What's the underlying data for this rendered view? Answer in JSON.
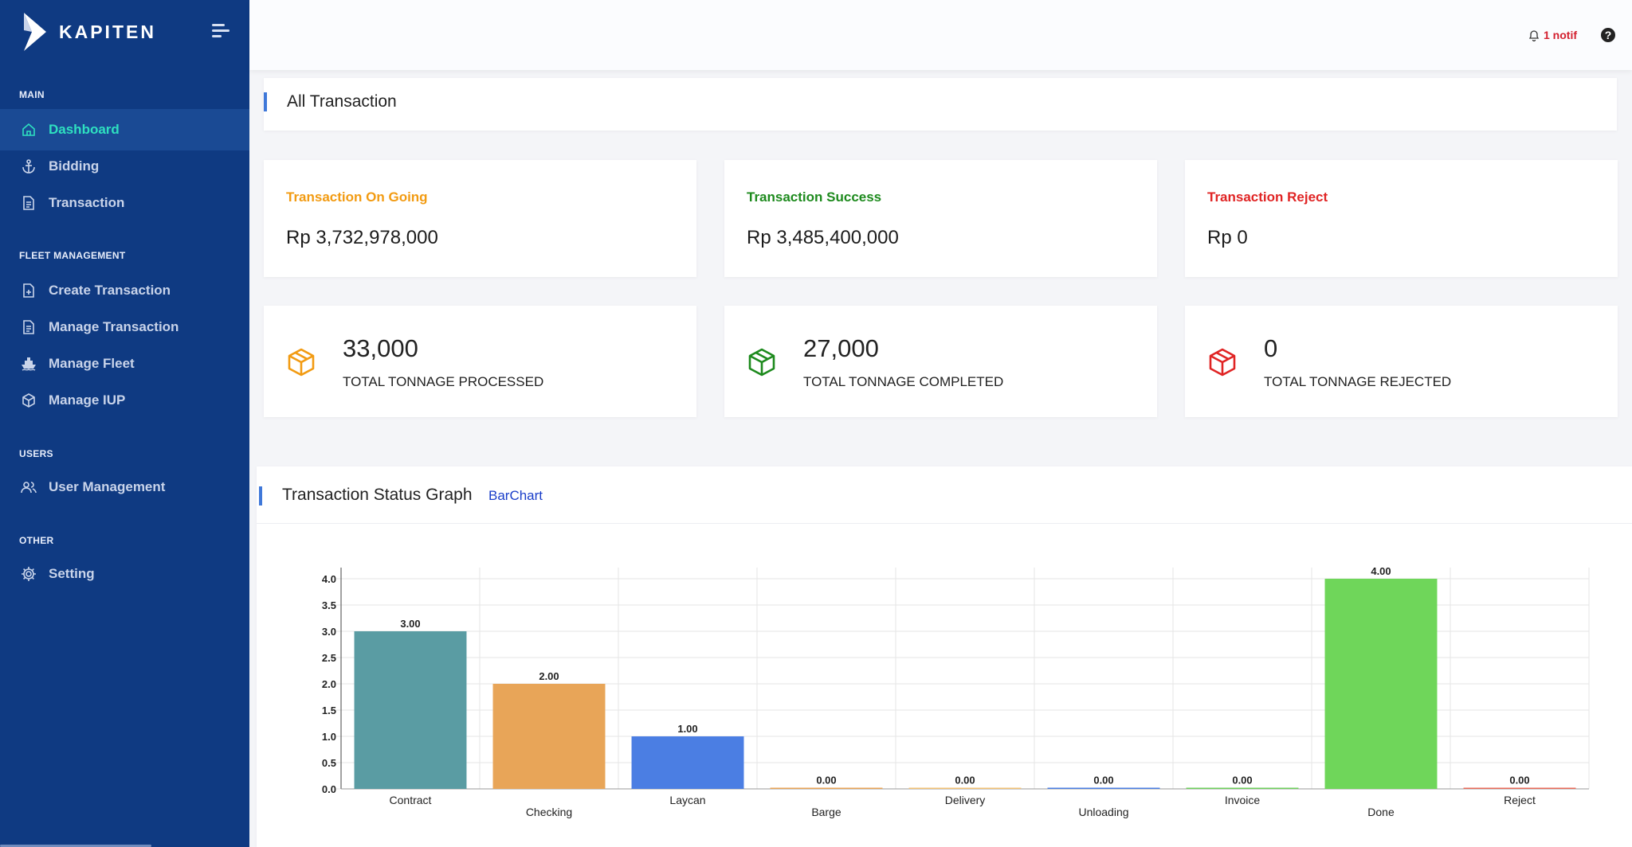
{
  "brand": {
    "name": "KAPITEN"
  },
  "sidebar": {
    "sections": [
      {
        "label": "MAIN"
      },
      {
        "label": "FLEET MANAGEMENT"
      },
      {
        "label": "USERS"
      },
      {
        "label": "OTHER"
      }
    ],
    "items": [
      {
        "label": "Dashboard",
        "icon": "home-icon",
        "active": true
      },
      {
        "label": "Bidding",
        "icon": "anchor-icon"
      },
      {
        "label": "Transaction",
        "icon": "document-icon"
      },
      {
        "label": "Create Transaction",
        "icon": "file-plus-icon"
      },
      {
        "label": "Manage Transaction",
        "icon": "document-icon"
      },
      {
        "label": "Manage Fleet",
        "icon": "ship-icon"
      },
      {
        "label": "Manage IUP",
        "icon": "box-icon"
      },
      {
        "label": "User Management",
        "icon": "users-icon"
      },
      {
        "label": "Setting",
        "icon": "gear-icon"
      }
    ]
  },
  "topbar": {
    "notif_label": "1 notif",
    "notif_color": "#d3202f"
  },
  "page": {
    "title": "All Transaction"
  },
  "summary": [
    {
      "label": "Transaction On Going",
      "value": "Rp 3,732,978,000",
      "color": "#f29b12"
    },
    {
      "label": "Transaction Success",
      "value": "Rp 3,485,400,000",
      "color": "#1d8a1d"
    },
    {
      "label": "Transaction Reject",
      "value": "Rp 0",
      "color": "#e02424"
    }
  ],
  "tonnage": [
    {
      "value": "33,000",
      "label": "TOTAL TONNAGE PROCESSED",
      "color": "#f29b12",
      "icon": "box-icon"
    },
    {
      "value": "27,000",
      "label": "TOTAL TONNAGE COMPLETED",
      "color": "#1d8a1d",
      "icon": "box-icon"
    },
    {
      "value": "0",
      "label": "TOTAL TONNAGE REJECTED",
      "color": "#e02424",
      "icon": "box-icon"
    }
  ],
  "graph": {
    "title": "Transaction Status Graph",
    "tab_label": "BarChart"
  },
  "chart_data": {
    "type": "bar",
    "categories": [
      "Contract",
      "Checking",
      "Laycan",
      "Barge",
      "Delivery",
      "Unloading",
      "Invoice",
      "Done",
      "Reject"
    ],
    "values": [
      3,
      2,
      1,
      0,
      0,
      0,
      0,
      4,
      0
    ],
    "data_labels": [
      "3.00",
      "2.00",
      "1.00",
      "0.00",
      "0.00",
      "0.00",
      "0.00",
      "4.00",
      "0.00"
    ],
    "colors": [
      "#5a9ca3",
      "#e8a558",
      "#4b7ee3",
      "#e8a558",
      "#f2c277",
      "#4b7ee3",
      "#6fcf5c",
      "#6fd65a",
      "#e86b5a"
    ],
    "ylim": [
      0,
      4
    ],
    "yticks": [
      "0.0",
      "0.5",
      "1.0",
      "1.5",
      "2.0",
      "2.5",
      "3.0",
      "3.5",
      "4.0"
    ],
    "grid": true,
    "xlabel": "",
    "ylabel": ""
  }
}
